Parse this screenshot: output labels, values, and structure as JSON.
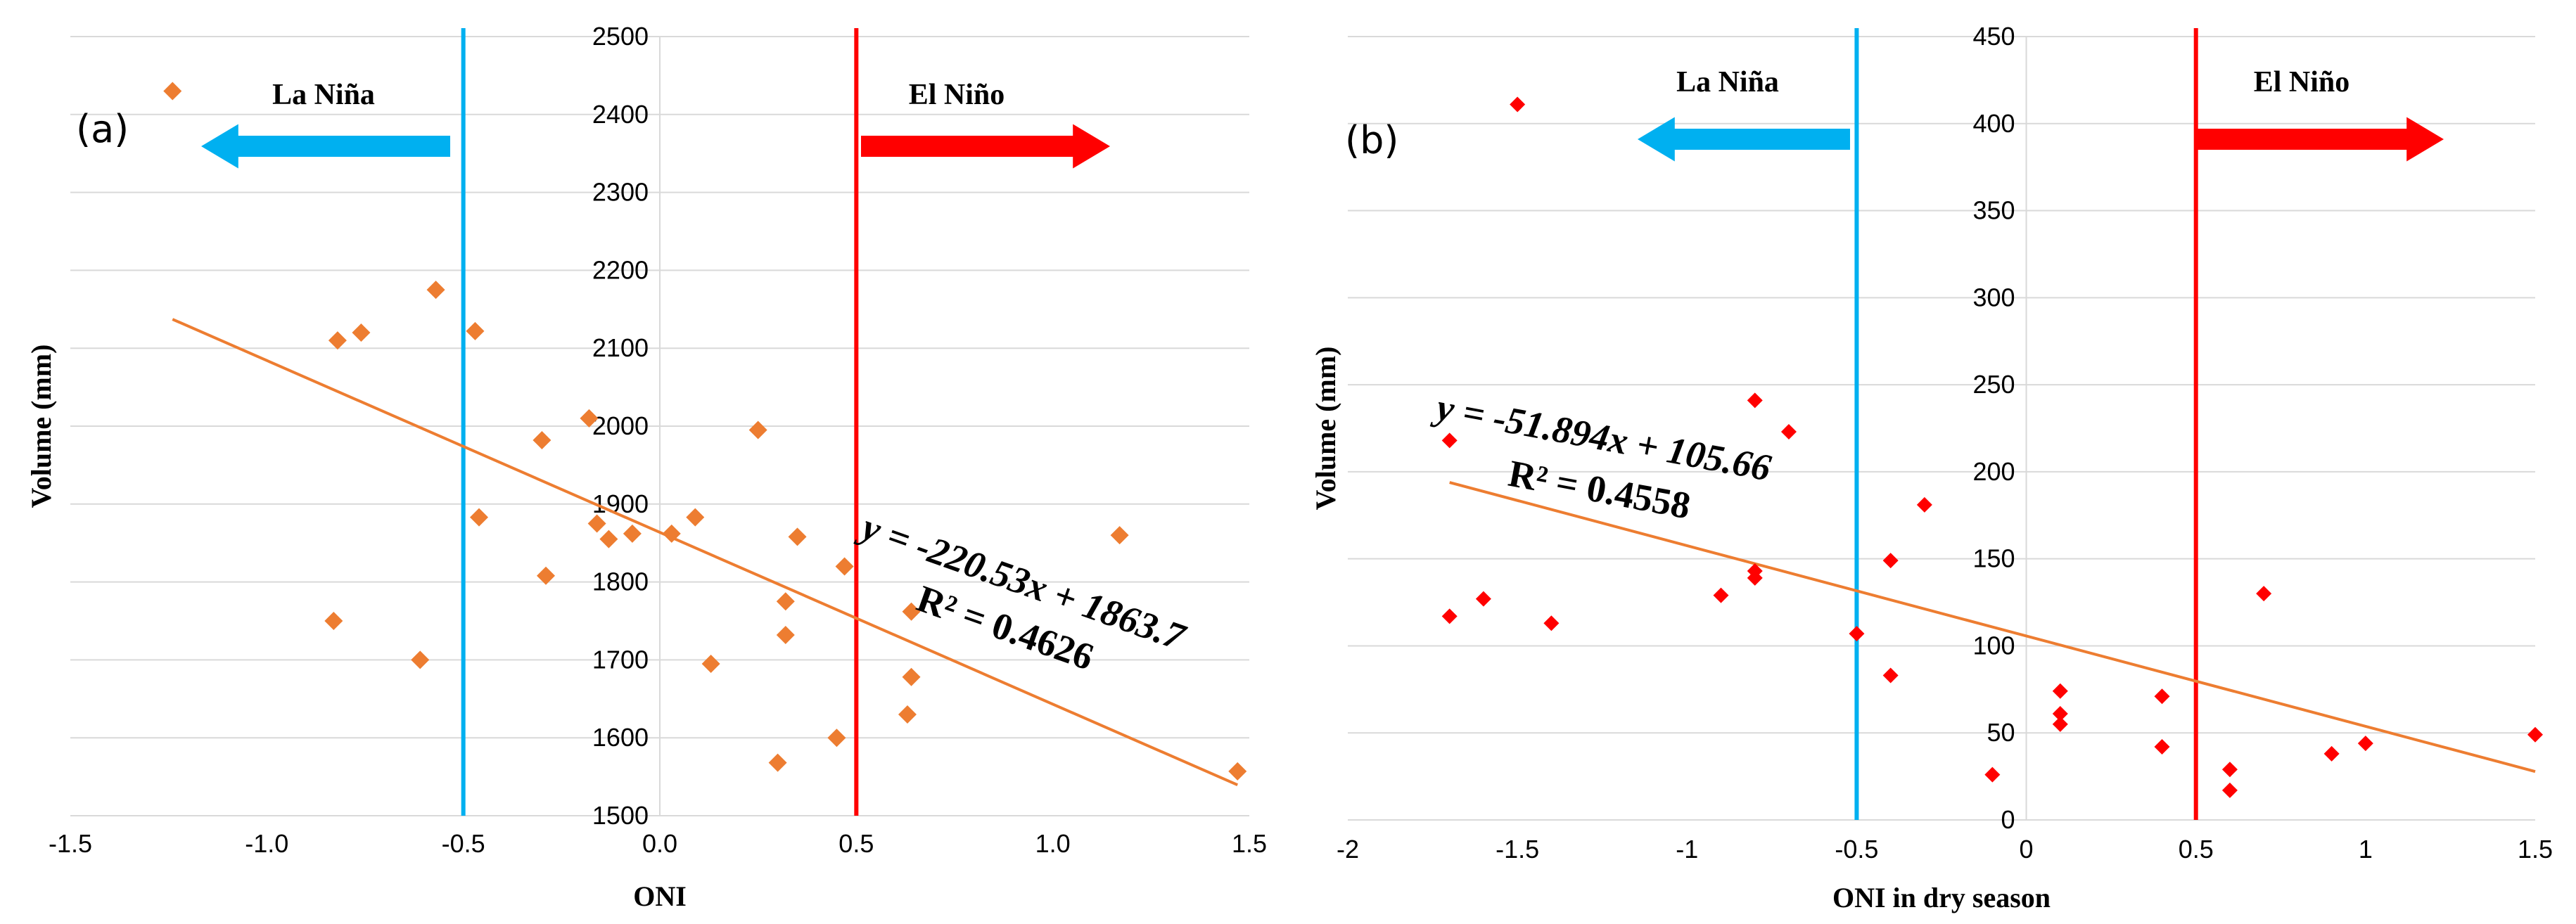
{
  "chart_data": [
    {
      "type": "scatter",
      "panel": "(a)",
      "xlabel": "ONI",
      "ylabel": "Volume (mm)",
      "xlim": [
        -1.5,
        1.5
      ],
      "ylim": [
        1500,
        2500
      ],
      "x_ticks": [
        -1.5,
        -1.0,
        -0.5,
        0.0,
        0.5,
        1.0,
        1.5
      ],
      "x_tick_labels": [
        "-1.5",
        "-1.0",
        "-0.5",
        "0.0",
        "0.5",
        "1.0",
        "1.5"
      ],
      "y_ticks": [
        1500,
        1600,
        1700,
        1800,
        1900,
        2000,
        2100,
        2200,
        2300,
        2400,
        2500
      ],
      "y_tick_labels": [
        "1500",
        "1600",
        "1700",
        "1800",
        "1900",
        "2000",
        "2100",
        "2200",
        "2300",
        "2400",
        "2500"
      ],
      "grid": true,
      "marker_color": "#ed7d31",
      "trend_color": "#ed7d31",
      "points": [
        {
          "x": -1.24,
          "y": 2430
        },
        {
          "x": -0.57,
          "y": 2175
        },
        {
          "x": -0.47,
          "y": 2122
        },
        {
          "x": -0.76,
          "y": 2120
        },
        {
          "x": -0.82,
          "y": 2110
        },
        {
          "x": -0.18,
          "y": 2010
        },
        {
          "x": -0.3,
          "y": 1982
        },
        {
          "x": 0.25,
          "y": 1995
        },
        {
          "x": -0.46,
          "y": 1883
        },
        {
          "x": 0.09,
          "y": 1883
        },
        {
          "x": -0.16,
          "y": 1875
        },
        {
          "x": -0.13,
          "y": 1855
        },
        {
          "x": -0.07,
          "y": 1862
        },
        {
          "x": 0.03,
          "y": 1862
        },
        {
          "x": 0.35,
          "y": 1858
        },
        {
          "x": 1.17,
          "y": 1860
        },
        {
          "x": 0.47,
          "y": 1820
        },
        {
          "x": -0.29,
          "y": 1808
        },
        {
          "x": 0.32,
          "y": 1775
        },
        {
          "x": 0.64,
          "y": 1762
        },
        {
          "x": -0.83,
          "y": 1750
        },
        {
          "x": 0.32,
          "y": 1732
        },
        {
          "x": -0.61,
          "y": 1700
        },
        {
          "x": 0.13,
          "y": 1695
        },
        {
          "x": 0.64,
          "y": 1678
        },
        {
          "x": 0.63,
          "y": 1630
        },
        {
          "x": 0.45,
          "y": 1600
        },
        {
          "x": 0.3,
          "y": 1568
        },
        {
          "x": 1.47,
          "y": 1557
        }
      ],
      "trendline": {
        "slope": -220.53,
        "intercept": 1863.7,
        "x_range": [
          -1.24,
          1.47
        ]
      },
      "equation_text": "y = -220.53x + 1863.7",
      "r2_text": "R² = 0.4626",
      "la_nina": {
        "label": "La Niña",
        "threshold": -0.5,
        "color": "#00b0f0"
      },
      "el_nino": {
        "label": "El Niño",
        "threshold": 0.5,
        "color": "#ff0000"
      }
    },
    {
      "type": "scatter",
      "panel": "(b)",
      "xlabel": "ONI in dry season",
      "ylabel": "Volume (mm)",
      "xlim": [
        -2,
        1.5
      ],
      "ylim": [
        0,
        450
      ],
      "x_ticks": [
        -2,
        -1.5,
        -1,
        -0.5,
        0,
        0.5,
        1,
        1.5
      ],
      "x_tick_labels": [
        "-2",
        "-1.5",
        "-1",
        "-0.5",
        "0",
        "0.5",
        "1",
        "1.5"
      ],
      "y_ticks": [
        0,
        50,
        100,
        150,
        200,
        250,
        300,
        350,
        400,
        450
      ],
      "y_tick_labels": [
        "0",
        "50",
        "100",
        "150",
        "200",
        "250",
        "300",
        "350",
        "400",
        "450"
      ],
      "grid": true,
      "marker_color": "#ff0000",
      "trend_color": "#ed7d31",
      "points": [
        {
          "x": -1.5,
          "y": 411
        },
        {
          "x": -1.7,
          "y": 218
        },
        {
          "x": -0.8,
          "y": 241
        },
        {
          "x": -0.7,
          "y": 223
        },
        {
          "x": -0.3,
          "y": 181
        },
        {
          "x": -0.4,
          "y": 149
        },
        {
          "x": -0.8,
          "y": 143
        },
        {
          "x": -0.8,
          "y": 139
        },
        {
          "x": -0.9,
          "y": 129
        },
        {
          "x": -1.6,
          "y": 127
        },
        {
          "x": -1.7,
          "y": 117
        },
        {
          "x": -1.4,
          "y": 113
        },
        {
          "x": -0.5,
          "y": 107
        },
        {
          "x": -0.4,
          "y": 83
        },
        {
          "x": -0.1,
          "y": 26
        },
        {
          "x": 0.1,
          "y": 74
        },
        {
          "x": 0.1,
          "y": 61
        },
        {
          "x": 0.1,
          "y": 55
        },
        {
          "x": 0.4,
          "y": 71
        },
        {
          "x": 0.4,
          "y": 42
        },
        {
          "x": 0.6,
          "y": 29
        },
        {
          "x": 0.6,
          "y": 17
        },
        {
          "x": 0.7,
          "y": 130
        },
        {
          "x": 0.9,
          "y": 38
        },
        {
          "x": 1.0,
          "y": 44
        },
        {
          "x": 1.5,
          "y": 49
        }
      ],
      "trendline": {
        "slope": -51.894,
        "intercept": 105.66,
        "x_range": [
          -1.7,
          1.5
        ]
      },
      "equation_text": "y = -51.894x + 105.66",
      "r2_text": "R² = 0.4558",
      "la_nina": {
        "label": "La Niña",
        "threshold": -0.5,
        "color": "#00b0f0"
      },
      "el_nino": {
        "label": "El Niño",
        "threshold": 0.5,
        "color": "#ff0000"
      }
    }
  ]
}
